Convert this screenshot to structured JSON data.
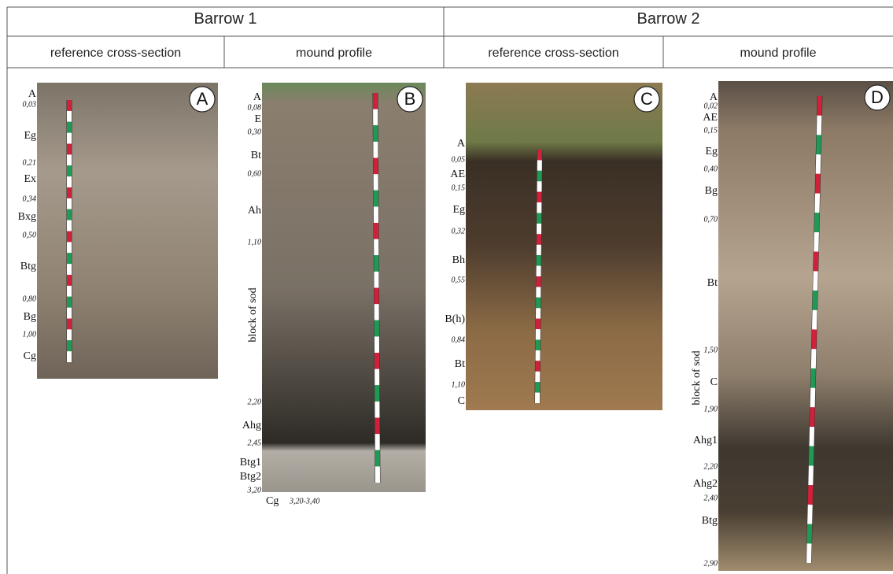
{
  "header": {
    "groups": [
      {
        "title": "Barrow 1",
        "columns": [
          "reference cross-section",
          "mound profile"
        ]
      },
      {
        "title": "Barrow 2",
        "columns": [
          "reference cross-section",
          "mound profile"
        ]
      }
    ]
  },
  "panels": [
    {
      "letter": "A",
      "labels": [
        "A",
        "0,03",
        "Eg",
        "0,21",
        "Ex",
        "0,34",
        "Bxg",
        "0,50",
        "Btg",
        "0,80",
        "Bg",
        "1,00",
        "Cg"
      ]
    },
    {
      "letter": "B",
      "labels": [
        "A",
        "0,08",
        "E",
        "0,30",
        "Bt",
        "0,60",
        "Ah",
        "1,10",
        "block of sod",
        "2,20",
        "Ahg",
        "2,45",
        "Btg1",
        "Btg2",
        "3,20",
        "Cg",
        "3,20-3,40"
      ]
    },
    {
      "letter": "C",
      "labels": [
        "A",
        "0,05",
        "AE",
        "0,15",
        "Eg",
        "0,32",
        "Bh",
        "0,55",
        "B(h)",
        "0,84",
        "Bt",
        "1,10",
        "C"
      ]
    },
    {
      "letter": "D",
      "labels": [
        "A",
        "0,02",
        "AE",
        "0,15",
        "Eg",
        "0,40",
        "Bg",
        "0,70",
        "Bt",
        "1,50",
        "block of sod",
        "C",
        "1,90",
        "Ahg1",
        "2,20",
        "Ahg2",
        "2,40",
        "Btg",
        "2,90"
      ]
    }
  ]
}
